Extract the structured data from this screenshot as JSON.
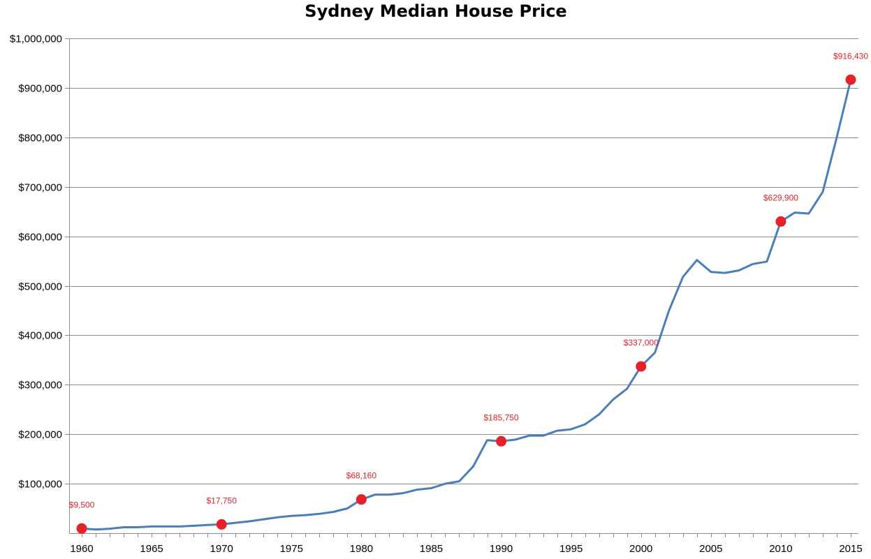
{
  "chart_data": {
    "type": "line",
    "title": "Sydney Median House Price",
    "xlabel": "",
    "ylabel": "",
    "ylim": [
      0,
      1000000
    ],
    "xlim": [
      1960,
      2015
    ],
    "y_ticks": [
      "$100,000",
      "$200,000",
      "$300,000",
      "$400,000",
      "$500,000",
      "$600,000",
      "$700,000",
      "$800,000",
      "$900,000",
      "$1,000,000"
    ],
    "y_tick_values": [
      100000,
      200000,
      300000,
      400000,
      500000,
      600000,
      700000,
      800000,
      900000,
      1000000
    ],
    "x_ticks": [
      "1960",
      "1965",
      "1970",
      "1975",
      "1980",
      "1985",
      "1990",
      "1995",
      "2000",
      "2005",
      "2010",
      "2015"
    ],
    "x_tick_values": [
      1960,
      1965,
      1970,
      1975,
      1980,
      1985,
      1990,
      1995,
      2000,
      2005,
      2010,
      2015
    ],
    "grid": true,
    "legend": "none",
    "line_color": "#4a7ebb",
    "marker_color": "#e8202a",
    "label_color": "#d9232a",
    "series": [
      {
        "x": [
          1960,
          1961,
          1962,
          1963,
          1964,
          1965,
          1966,
          1967,
          1968,
          1969,
          1970,
          1971,
          1972,
          1973,
          1974,
          1975,
          1976,
          1977,
          1978,
          1979,
          1980,
          1981,
          1982,
          1983,
          1984,
          1985,
          1986,
          1987,
          1988,
          1989,
          1990,
          1991,
          1992,
          1993,
          1994,
          1995,
          1996,
          1997,
          1998,
          1999,
          2000,
          2001,
          2002,
          2003,
          2004,
          2005,
          2006,
          2007,
          2008,
          2009,
          2010,
          2011,
          2012,
          2013,
          2014,
          2015
        ],
        "values": [
          9500,
          7500,
          9000,
          12000,
          12000,
          13500,
          13500,
          13500,
          15000,
          16500,
          17750,
          21000,
          24000,
          28000,
          32000,
          35000,
          36500,
          39000,
          43000,
          50000,
          68160,
          78000,
          78000,
          81000,
          88000,
          91000,
          100000,
          105000,
          135000,
          188000,
          185750,
          189000,
          197000,
          197000,
          207000,
          210000,
          220000,
          240000,
          270000,
          292000,
          337000,
          365000,
          450000,
          518000,
          552000,
          528000,
          526000,
          531000,
          544000,
          549000,
          629900,
          648000,
          646000,
          690000,
          800000,
          916430
        ]
      }
    ],
    "highlighted_points": [
      {
        "x": 1960,
        "y": 9500,
        "label": "$9,500"
      },
      {
        "x": 1970,
        "y": 17750,
        "label": "$17,750"
      },
      {
        "x": 1980,
        "y": 68160,
        "label": "$68,160"
      },
      {
        "x": 1990,
        "y": 185750,
        "label": "$185,750"
      },
      {
        "x": 2000,
        "y": 337000,
        "label": "$337,000"
      },
      {
        "x": 2010,
        "y": 629900,
        "label": "$629,900"
      },
      {
        "x": 2015,
        "y": 916430,
        "label": "$916,430"
      }
    ]
  }
}
